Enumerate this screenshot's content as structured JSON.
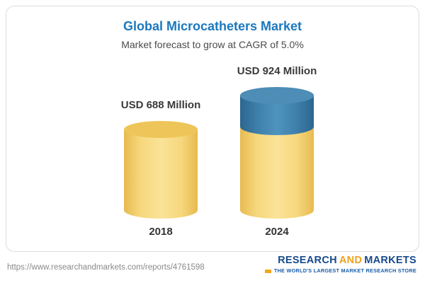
{
  "header": {
    "title": "Global Microcatheters Market",
    "subtitle": "Market forecast to grow at CAGR of 5.0%"
  },
  "chart_data": {
    "type": "bar",
    "variant": "3d-cylinder",
    "title": "Global Microcatheters Market",
    "subtitle": "Market forecast to grow at CAGR of 5.0%",
    "cagr": "5.0%",
    "unit": "USD Million",
    "categories": [
      "2018",
      "2024"
    ],
    "values": [
      688,
      924
    ],
    "value_labels": [
      "USD 688 Million",
      "USD 924 Million"
    ],
    "legend": "none",
    "grid": false,
    "colors": {
      "base_segment": "#F2CF6B",
      "growth_segment": "#3F81AC",
      "title": "#1B78BE"
    },
    "notes": "2024 cylinder shows base (688) in gold plus growth increment (236) as blue top segment"
  },
  "footer": {
    "url": "https://www.researchandmarkets.com/reports/4761598",
    "logo": {
      "word1": "RESEARCH",
      "word2": "AND",
      "word3": "MARKETS",
      "tagline": "THE WORLD'S LARGEST MARKET RESEARCH STORE"
    }
  }
}
